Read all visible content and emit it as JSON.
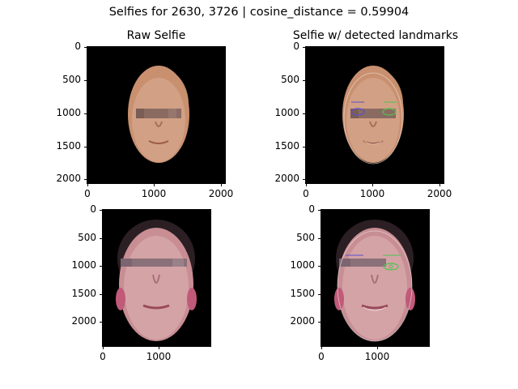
{
  "figure": {
    "suptitle": "Selfies for 2630, 3726 | cosine_distance = 0.59904"
  },
  "panels": [
    {
      "title": "Raw Selfie",
      "yticks": [
        "0",
        "500",
        "1000",
        "1500",
        "2000"
      ],
      "xticks": [
        "0",
        "1000",
        "2000"
      ],
      "image": "selfie-2630-raw"
    },
    {
      "title": "Selfie w/ detected landmarks",
      "yticks": [
        "0",
        "500",
        "1000",
        "1500",
        "2000"
      ],
      "xticks": [
        "0",
        "1000",
        "2000"
      ],
      "image": "selfie-2630-landmarks"
    },
    {
      "title": "",
      "yticks": [
        "0",
        "500",
        "1000",
        "1500",
        "2000"
      ],
      "xticks": [
        "0",
        "1000"
      ],
      "image": "selfie-3726-raw"
    },
    {
      "title": "",
      "yticks": [
        "0",
        "500",
        "1000",
        "1500",
        "2000"
      ],
      "xticks": [
        "0",
        "1000"
      ],
      "image": "selfie-3726-landmarks"
    }
  ],
  "colors": {
    "background": "#000000",
    "skin_light": "#c99070",
    "skin_warm": "#d8a488",
    "hair": "#b58a60",
    "mosaic": "#8a6b62",
    "landmark_green": "#4fc44f",
    "landmark_blue": "#5a4fc8"
  }
}
